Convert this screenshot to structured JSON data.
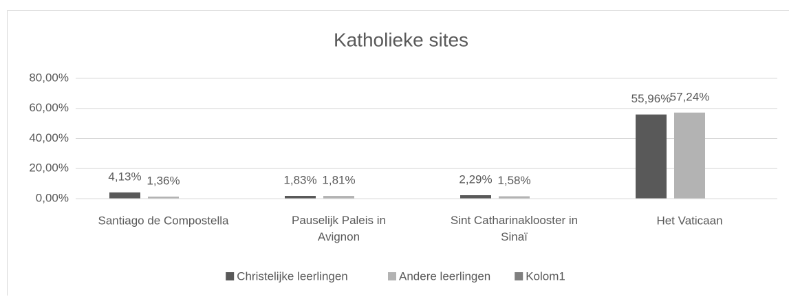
{
  "chart_data": {
    "type": "bar",
    "title": "Katholieke sites",
    "categories": [
      "Santiago de Compostella",
      "Pauselijk Paleis in Avignon",
      "Sint Catharinaklooster in Sinaï",
      "Het Vaticaan"
    ],
    "series": [
      {
        "name": "Christelijke leerlingen",
        "color": "#595959",
        "values": [
          4.13,
          1.83,
          2.29,
          55.96
        ],
        "value_labels": [
          "4,13%",
          "1,83%",
          "2,29%",
          "55,96%"
        ]
      },
      {
        "name": "Andere leerlingen",
        "color": "#b3b3b3",
        "values": [
          1.36,
          1.81,
          1.58,
          57.24
        ],
        "value_labels": [
          "1,36%",
          "1,81%",
          "1,58%",
          "57,24%"
        ]
      },
      {
        "name": "Kolom1",
        "color": "#7f7f7f",
        "values": [
          null,
          null,
          null,
          null
        ]
      }
    ],
    "ylim": [
      0,
      80
    ],
    "yticks": [
      {
        "value": 0,
        "label": "0,00%"
      },
      {
        "value": 20,
        "label": "20,00%"
      },
      {
        "value": 40,
        "label": "40,00%"
      },
      {
        "value": 60,
        "label": "60,00%"
      },
      {
        "value": 80,
        "label": "80,00%"
      }
    ],
    "grid": true,
    "legend": "bottom"
  }
}
